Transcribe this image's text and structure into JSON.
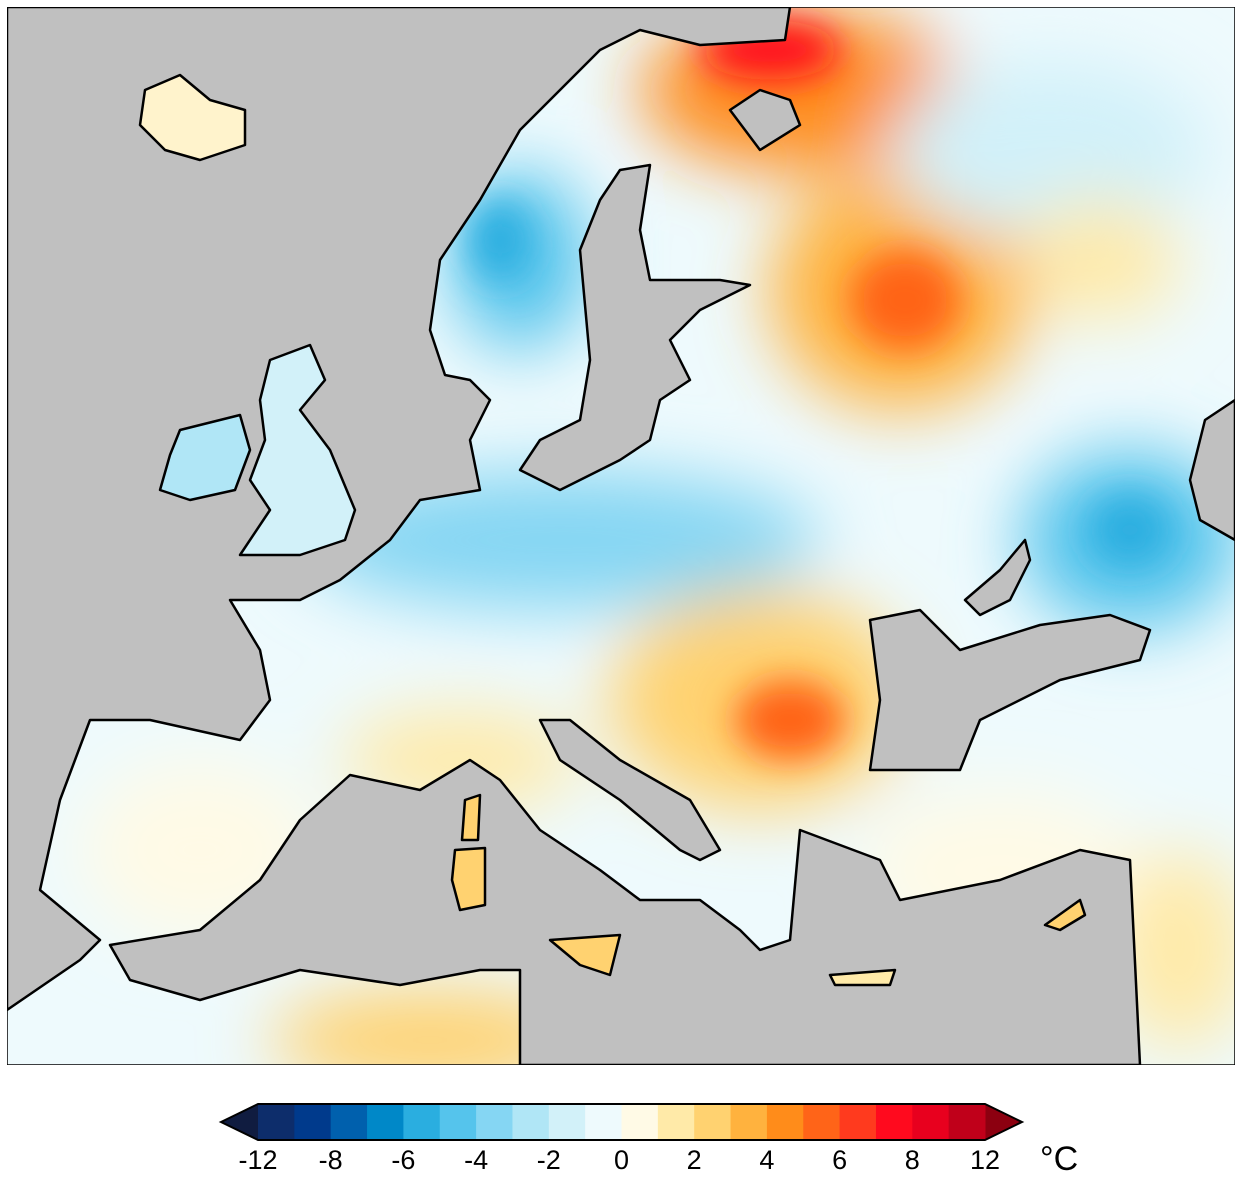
{
  "map": {
    "land_color": "#c0c0c0",
    "neutral_color": "#eefafd"
  },
  "colorbar": {
    "unit": "°C",
    "tick_labels": [
      "-12",
      "-8",
      "-6",
      "-4",
      "-2",
      "0",
      "2",
      "4",
      "6",
      "8",
      "12"
    ],
    "tick_values": [
      -12,
      -8,
      -6,
      -4,
      -2,
      0,
      2,
      4,
      6,
      8,
      12
    ],
    "boundaries": [
      -12,
      -10,
      -8,
      -7,
      -6,
      -5,
      -4,
      -3,
      -2,
      -1,
      0,
      1,
      2,
      3,
      4,
      5,
      6,
      7,
      8,
      10,
      12
    ],
    "colors": [
      "#0d2d6b",
      "#003a8c",
      "#0060ad",
      "#0088c8",
      "#2aaee0",
      "#55c4ec",
      "#85d6f3",
      "#b0e6f6",
      "#d2f1f9",
      "#eefafd",
      "#fffae6",
      "#ffeaa8",
      "#ffd270",
      "#ffb23e",
      "#ff8c1a",
      "#ff6418",
      "#ff3a1e",
      "#ff0a1e",
      "#e8001e",
      "#c0001a"
    ],
    "under_color": "#101c40",
    "over_color": "#8c0010"
  }
}
